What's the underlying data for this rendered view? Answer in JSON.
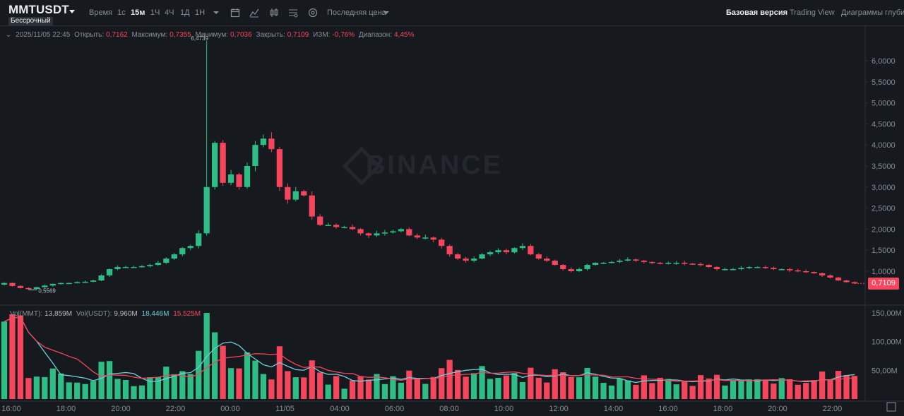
{
  "symbol": "MMTUSDT",
  "contract_type": "Бессрочный",
  "toolbar": {
    "time_label": "Время",
    "intervals": [
      "1с",
      "15м",
      "1Ч",
      "4Ч",
      "1Д",
      "1Н"
    ],
    "active_interval": "15м",
    "price_type": "Последняя цена"
  },
  "view_tabs": [
    "Базовая версия",
    "Trading View",
    "Диаграммы глубины"
  ],
  "active_view_tab": "Базовая версия",
  "ohlc": {
    "datetime": "2025/11/05 22:45",
    "open_label": "Открыть:",
    "open": "0,7162",
    "high_label": "Максимум:",
    "high": "0,7355",
    "low_label": "Минимум:",
    "low": "0,7036",
    "close_label": "Закрыть:",
    "close": "0,7109",
    "change_label": "ИЗМ:",
    "change": "-0,76%",
    "range_label": "Диапазон:",
    "range": "4,45%"
  },
  "volume_header": {
    "base_label": "Vol(MMT):",
    "base": "13,859M",
    "quote_label": "Vol(USDT):",
    "quote": "9,960M",
    "ma1": "18,446M",
    "ma2": "15,525M"
  },
  "price_axis": [
    "6,0000",
    "5,5000",
    "5,0000",
    "4,5000",
    "4,0000",
    "3,5000",
    "3,0000",
    "2,5000",
    "2,0000",
    "1,5000",
    "1,0000"
  ],
  "volume_axis": [
    "150,00M",
    "100,00M",
    "50,00M"
  ],
  "time_axis": [
    "16:00",
    "18:00",
    "20:00",
    "22:00",
    "00:00",
    "11/05",
    "04:00",
    "06:00",
    "08:00",
    "10:00",
    "12:00",
    "14:00",
    "16:00",
    "18:00",
    "20:00",
    "22:00"
  ],
  "last_price": "0,7109",
  "high_marker": "6,4739",
  "low_marker": "0,5569",
  "watermark": "BINANCE",
  "colors": {
    "up": "#2ebd85",
    "down": "#f6465d",
    "bg": "#161a1e",
    "grid": "#1e2329",
    "ma_short": "#6fcfd8",
    "ma_long": "#f6465d"
  },
  "chart_data": {
    "type": "candlestick",
    "interval": "15м",
    "price_range": [
      0.5,
      6.47
    ],
    "volume_range": [
      0,
      150
    ],
    "series": [
      {
        "name": "price_close_approx",
        "values": [
          0.72,
          0.65,
          0.6,
          0.58,
          0.62,
          0.66,
          0.7,
          0.72,
          0.72,
          0.74,
          0.75,
          0.78,
          0.9,
          1.05,
          1.1,
          1.1,
          1.1,
          1.12,
          1.15,
          1.2,
          1.3,
          1.4,
          1.55,
          1.6,
          1.9,
          3.0,
          4.05,
          3.1,
          3.3,
          3.0,
          3.5,
          4.0,
          4.15,
          3.9,
          3.0,
          2.7,
          2.9,
          2.8,
          2.3,
          2.1,
          2.1,
          2.05,
          2.05,
          2.0,
          1.9,
          1.85,
          1.9,
          1.92,
          1.95,
          2.0,
          1.85,
          1.8,
          1.8,
          1.75,
          1.6,
          1.4,
          1.3,
          1.25,
          1.3,
          1.4,
          1.45,
          1.5,
          1.45,
          1.55,
          1.6,
          1.4,
          1.3,
          1.25,
          1.15,
          1.05,
          1.0,
          1.05,
          1.15,
          1.2,
          1.2,
          1.22,
          1.25,
          1.28,
          1.25,
          1.22,
          1.2,
          1.18,
          1.2,
          1.2,
          1.18,
          1.17,
          1.15,
          1.1,
          1.05,
          1.05,
          1.05,
          1.08,
          1.1,
          1.1,
          1.08,
          1.05,
          1.05,
          1.02,
          1.0,
          0.98,
          0.95,
          0.9,
          0.85,
          0.78,
          0.74,
          0.71
        ]
      }
    ]
  }
}
